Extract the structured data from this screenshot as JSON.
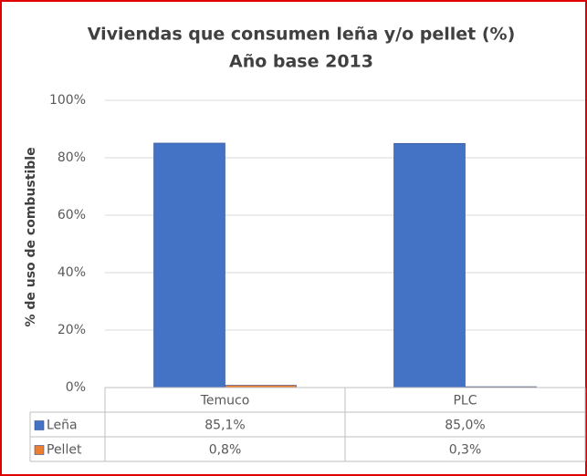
{
  "chart_data": {
    "type": "bar",
    "title": "Viviendas que consumen leña y/o pellet (%)",
    "subtitle": "Año base 2013",
    "y_label": "% de uso de combustible",
    "categories": [
      "Temuco",
      "PLC"
    ],
    "series": [
      {
        "name": "Leña",
        "color": "#4472c4",
        "values": [
          85.1,
          85.0
        ],
        "value_labels": [
          "85,1%",
          "85,0%"
        ]
      },
      {
        "name": "Pellet",
        "color": "#ed7d31",
        "values": [
          0.8,
          0.3
        ],
        "value_labels": [
          "0,8%",
          "0,3%"
        ]
      }
    ],
    "ylim": [
      0,
      100
    ],
    "yticks": [
      {
        "value": 0,
        "label": "0%"
      },
      {
        "value": 20,
        "label": "20%"
      },
      {
        "value": 40,
        "label": "40%"
      },
      {
        "value": 60,
        "label": "60%"
      },
      {
        "value": 80,
        "label": "80%"
      },
      {
        "value": 100,
        "label": "100%"
      }
    ],
    "grid": true
  }
}
